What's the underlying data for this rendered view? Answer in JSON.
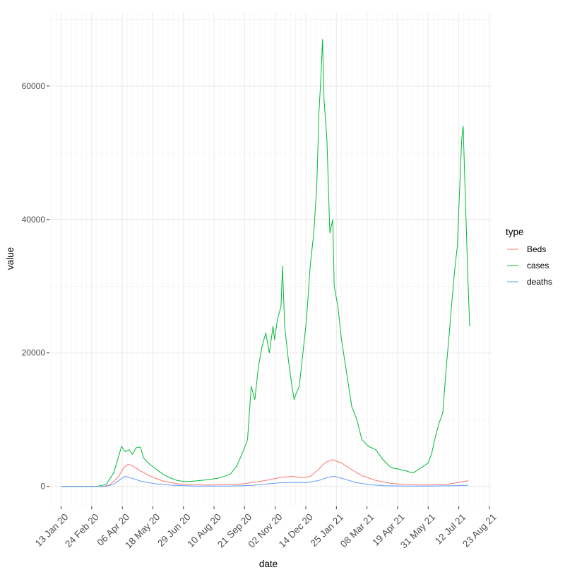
{
  "chart_data": {
    "type": "line",
    "xlabel": "date",
    "ylabel": "value",
    "xlim": [
      "2019-12-28",
      "2021-08-27"
    ],
    "ylim": [
      -3000,
      71000
    ],
    "y_ticks": [
      0,
      20000,
      40000,
      60000
    ],
    "y_tick_labels": [
      "0",
      "20000",
      "40000",
      "60000"
    ],
    "x_ticks": [
      "2020-01-13",
      "2020-02-24",
      "2020-04-06",
      "2020-05-18",
      "2020-06-29",
      "2020-08-10",
      "2020-09-21",
      "2020-11-02",
      "2020-12-14",
      "2021-01-25",
      "2021-03-08",
      "2021-04-19",
      "2021-05-31",
      "2021-07-12",
      "2021-08-23"
    ],
    "x_tick_labels": [
      "13 Jan 20",
      "24 Feb 20",
      "06 Apr 20",
      "18 May 20",
      "29 Jun 20",
      "10 Aug 20",
      "21 Sep 20",
      "02 Nov 20",
      "14 Dec 20",
      "25 Jan 21",
      "08 Mar 21",
      "19 Apr 21",
      "31 May 21",
      "12 Jul 21",
      "23 Aug 21"
    ],
    "grid": true,
    "legend": {
      "title": "type",
      "position": "right"
    },
    "series": [
      {
        "name": "Beds",
        "color": "#F8766D",
        "points": [
          [
            "2020-01-13",
            0
          ],
          [
            "2020-03-10",
            0
          ],
          [
            "2020-03-20",
            200
          ],
          [
            "2020-04-01",
            1500
          ],
          [
            "2020-04-08",
            2800
          ],
          [
            "2020-04-14",
            3300
          ],
          [
            "2020-04-20",
            3100
          ],
          [
            "2020-05-01",
            2300
          ],
          [
            "2020-05-15",
            1500
          ],
          [
            "2020-06-01",
            800
          ],
          [
            "2020-06-20",
            400
          ],
          [
            "2020-07-10",
            250
          ],
          [
            "2020-08-01",
            200
          ],
          [
            "2020-09-01",
            250
          ],
          [
            "2020-09-20",
            400
          ],
          [
            "2020-10-10",
            700
          ],
          [
            "2020-10-25",
            1000
          ],
          [
            "2020-11-10",
            1350
          ],
          [
            "2020-11-25",
            1500
          ],
          [
            "2020-12-10",
            1300
          ],
          [
            "2020-12-20",
            1500
          ],
          [
            "2021-01-01",
            2600
          ],
          [
            "2021-01-10",
            3600
          ],
          [
            "2021-01-20",
            4000
          ],
          [
            "2021-02-01",
            3500
          ],
          [
            "2021-02-15",
            2500
          ],
          [
            "2021-03-01",
            1600
          ],
          [
            "2021-03-20",
            900
          ],
          [
            "2021-04-10",
            450
          ],
          [
            "2021-05-01",
            250
          ],
          [
            "2021-05-20",
            200
          ],
          [
            "2021-06-10",
            230
          ],
          [
            "2021-06-25",
            300
          ],
          [
            "2021-07-10",
            550
          ],
          [
            "2021-07-25",
            850
          ]
        ]
      },
      {
        "name": "cases",
        "color": "#00BA38",
        "points": [
          [
            "2020-01-13",
            0
          ],
          [
            "2020-02-25",
            0
          ],
          [
            "2020-03-05",
            50
          ],
          [
            "2020-03-15",
            300
          ],
          [
            "2020-03-25",
            2000
          ],
          [
            "2020-04-01",
            4500
          ],
          [
            "2020-04-05",
            6000
          ],
          [
            "2020-04-10",
            5200
          ],
          [
            "2020-04-15",
            5500
          ],
          [
            "2020-04-20",
            4800
          ],
          [
            "2020-04-25",
            5800
          ],
          [
            "2020-05-01",
            5900
          ],
          [
            "2020-05-05",
            4300
          ],
          [
            "2020-05-10",
            3700
          ],
          [
            "2020-05-15",
            3200
          ],
          [
            "2020-05-20",
            2800
          ],
          [
            "2020-06-01",
            1800
          ],
          [
            "2020-06-10",
            1300
          ],
          [
            "2020-06-20",
            900
          ],
          [
            "2020-07-01",
            700
          ],
          [
            "2020-07-15",
            800
          ],
          [
            "2020-08-01",
            1000
          ],
          [
            "2020-08-15",
            1200
          ],
          [
            "2020-09-01",
            1800
          ],
          [
            "2020-09-10",
            3000
          ],
          [
            "2020-09-20",
            5500
          ],
          [
            "2020-09-25",
            7000
          ],
          [
            "2020-09-30",
            15000
          ],
          [
            "2020-10-05",
            13000
          ],
          [
            "2020-10-10",
            18000
          ],
          [
            "2020-10-15",
            21000
          ],
          [
            "2020-10-20",
            23000
          ],
          [
            "2020-10-25",
            20000
          ],
          [
            "2020-10-30",
            24000
          ],
          [
            "2020-11-01",
            22000
          ],
          [
            "2020-11-05",
            25000
          ],
          [
            "2020-11-10",
            27000
          ],
          [
            "2020-11-12",
            33000
          ],
          [
            "2020-11-15",
            24000
          ],
          [
            "2020-11-20",
            19000
          ],
          [
            "2020-11-25",
            15000
          ],
          [
            "2020-11-28",
            13000
          ],
          [
            "2020-12-01",
            14000
          ],
          [
            "2020-12-05",
            15000
          ],
          [
            "2020-12-10",
            20000
          ],
          [
            "2020-12-15",
            25000
          ],
          [
            "2020-12-20",
            33000
          ],
          [
            "2020-12-25",
            38000
          ],
          [
            "2020-12-29",
            45000
          ],
          [
            "2021-01-01",
            56000
          ],
          [
            "2021-01-04",
            62000
          ],
          [
            "2021-01-06",
            67000
          ],
          [
            "2021-01-08",
            58000
          ],
          [
            "2021-01-12",
            52000
          ],
          [
            "2021-01-16",
            38000
          ],
          [
            "2021-01-20",
            40000
          ],
          [
            "2021-01-22",
            30000
          ],
          [
            "2021-01-27",
            27000
          ],
          [
            "2021-02-01",
            22000
          ],
          [
            "2021-02-08",
            17000
          ],
          [
            "2021-02-15",
            12000
          ],
          [
            "2021-02-22",
            10000
          ],
          [
            "2021-03-01",
            7000
          ],
          [
            "2021-03-10",
            6000
          ],
          [
            "2021-03-20",
            5500
          ],
          [
            "2021-03-30",
            4000
          ],
          [
            "2021-04-10",
            2800
          ],
          [
            "2021-04-20",
            2600
          ],
          [
            "2021-05-01",
            2300
          ],
          [
            "2021-05-10",
            2000
          ],
          [
            "2021-05-20",
            2700
          ],
          [
            "2021-05-31",
            3500
          ],
          [
            "2021-06-05",
            5000
          ],
          [
            "2021-06-10",
            7500
          ],
          [
            "2021-06-15",
            9500
          ],
          [
            "2021-06-20",
            11000
          ],
          [
            "2021-06-25",
            18000
          ],
          [
            "2021-06-29",
            23000
          ],
          [
            "2021-07-02",
            27000
          ],
          [
            "2021-07-06",
            32000
          ],
          [
            "2021-07-10",
            36000
          ],
          [
            "2021-07-13",
            44000
          ],
          [
            "2021-07-16",
            52000
          ],
          [
            "2021-07-18",
            54000
          ],
          [
            "2021-07-20",
            47000
          ],
          [
            "2021-07-22",
            40000
          ],
          [
            "2021-07-24",
            33000
          ],
          [
            "2021-07-27",
            24000
          ]
        ]
      },
      {
        "name": "deaths",
        "color": "#619CFF",
        "points": [
          [
            "2020-01-13",
            0
          ],
          [
            "2020-03-15",
            0
          ],
          [
            "2020-03-25",
            300
          ],
          [
            "2020-04-05",
            1200
          ],
          [
            "2020-04-10",
            1500
          ],
          [
            "2020-04-20",
            1200
          ],
          [
            "2020-05-01",
            800
          ],
          [
            "2020-05-20",
            400
          ],
          [
            "2020-06-15",
            150
          ],
          [
            "2020-07-15",
            50
          ],
          [
            "2020-09-01",
            50
          ],
          [
            "2020-10-01",
            150
          ],
          [
            "2020-10-20",
            350
          ],
          [
            "2020-11-10",
            550
          ],
          [
            "2020-12-01",
            600
          ],
          [
            "2020-12-15",
            550
          ],
          [
            "2021-01-01",
            900
          ],
          [
            "2021-01-15",
            1400
          ],
          [
            "2021-01-22",
            1500
          ],
          [
            "2021-02-05",
            1100
          ],
          [
            "2021-02-20",
            600
          ],
          [
            "2021-03-10",
            250
          ],
          [
            "2021-04-01",
            100
          ],
          [
            "2021-05-01",
            50
          ],
          [
            "2021-06-01",
            50
          ],
          [
            "2021-07-01",
            80
          ],
          [
            "2021-07-25",
            150
          ]
        ]
      }
    ]
  }
}
